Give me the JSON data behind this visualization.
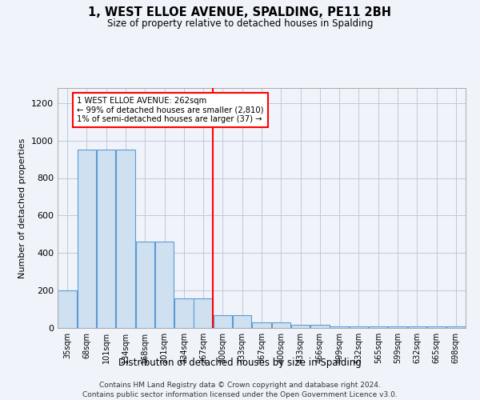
{
  "title": "1, WEST ELLOE AVENUE, SPALDING, PE11 2BH",
  "subtitle": "Size of property relative to detached houses in Spalding",
  "xlabel": "Distribution of detached houses by size in Spalding",
  "ylabel": "Number of detached properties",
  "footer_line1": "Contains HM Land Registry data © Crown copyright and database right 2024.",
  "footer_line2": "Contains public sector information licensed under the Open Government Licence v3.0.",
  "bin_labels": [
    "35sqm",
    "68sqm",
    "101sqm",
    "134sqm",
    "168sqm",
    "201sqm",
    "234sqm",
    "267sqm",
    "300sqm",
    "333sqm",
    "367sqm",
    "400sqm",
    "433sqm",
    "466sqm",
    "499sqm",
    "532sqm",
    "565sqm",
    "599sqm",
    "632sqm",
    "665sqm",
    "698sqm"
  ],
  "bar_values": [
    200,
    950,
    950,
    950,
    460,
    460,
    160,
    160,
    70,
    70,
    30,
    30,
    15,
    15,
    10,
    10,
    10,
    10,
    10,
    10,
    10
  ],
  "bar_color": "#cfe0f0",
  "bar_edgecolor": "#5b9bd5",
  "vline_index": 7.5,
  "vline_color": "red",
  "annotation_line1": "1 WEST ELLOE AVENUE: 262sqm",
  "annotation_line2": "← 99% of detached houses are smaller (2,810)",
  "annotation_line3": "1% of semi-detached houses are larger (37) →",
  "ylim": [
    0,
    1280
  ],
  "yticks": [
    0,
    200,
    400,
    600,
    800,
    1000,
    1200
  ],
  "background_color": "#f0f4fa",
  "grid_color": "#c0c8d8",
  "spine_color": "#aaaaaa"
}
